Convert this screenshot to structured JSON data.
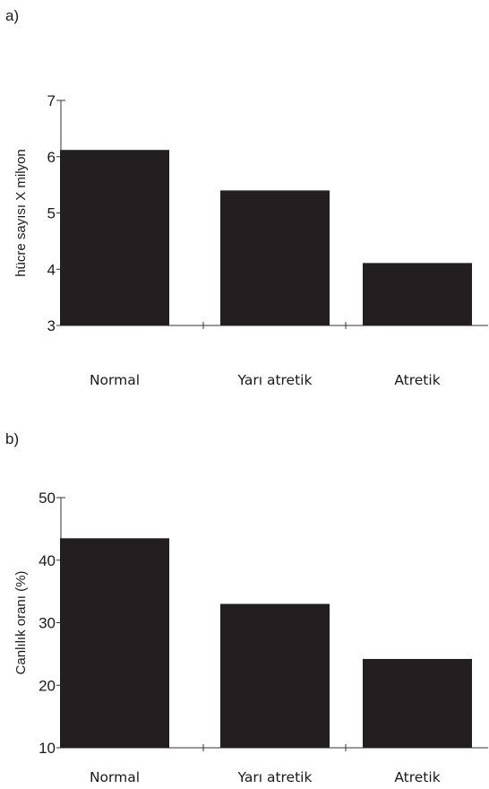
{
  "panels": {
    "a_label": "a)",
    "b_label": "b)"
  },
  "chart_data": [
    {
      "type": "bar",
      "title": "",
      "xlabel": "",
      "ylabel": "hücre sayısı X milyon",
      "categories": [
        "Normal",
        "Yarı atretik",
        "Atretik"
      ],
      "values": [
        6.12,
        5.4,
        4.11
      ],
      "ylim": [
        3,
        7
      ],
      "yticks": [
        3,
        4,
        5,
        6,
        7
      ],
      "bar_color": "#231f20",
      "grid": false
    },
    {
      "type": "bar",
      "title": "",
      "xlabel": "",
      "ylabel": "Canlılık oranı (%)",
      "categories": [
        "Normal",
        "Yarı atretik",
        "Atretik"
      ],
      "values": [
        43.5,
        33.0,
        24.2
      ],
      "ylim": [
        10,
        50
      ],
      "yticks": [
        10,
        20,
        30,
        40,
        50
      ],
      "bar_color": "#231f20",
      "grid": false
    }
  ]
}
